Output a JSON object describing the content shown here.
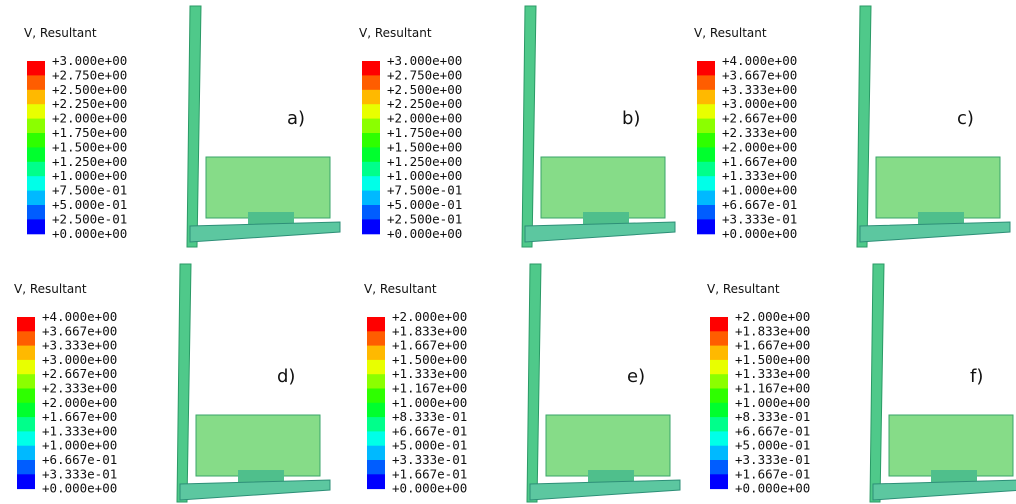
{
  "panels": [
    {
      "title": "V, Resultant",
      "label": "a)",
      "legend": [
        "+3.000e+00",
        "+2.750e+00",
        "+2.500e+00",
        "+2.250e+00",
        "+2.000e+00",
        "+1.750e+00",
        "+1.500e+00",
        "+1.250e+00",
        "+1.000e+00",
        "+7.500e-01",
        "+5.000e-01",
        "+2.500e-01",
        "+0.000e+00"
      ]
    },
    {
      "title": "V, Resultant",
      "label": "b)",
      "legend": [
        "+3.000e+00",
        "+2.750e+00",
        "+2.500e+00",
        "+2.250e+00",
        "+2.000e+00",
        "+1.750e+00",
        "+1.500e+00",
        "+1.250e+00",
        "+1.000e+00",
        "+7.500e-01",
        "+5.000e-01",
        "+2.500e-01",
        "+0.000e+00"
      ]
    },
    {
      "title": "V, Resultant",
      "label": "c)",
      "legend": [
        "+4.000e+00",
        "+3.667e+00",
        "+3.333e+00",
        "+3.000e+00",
        "+2.667e+00",
        "+2.333e+00",
        "+2.000e+00",
        "+1.667e+00",
        "+1.333e+00",
        "+1.000e+00",
        "+6.667e-01",
        "+3.333e-01",
        "+0.000e+00"
      ]
    },
    {
      "title": "V, Resultant",
      "label": "d)",
      "legend": [
        "+4.000e+00",
        "+3.667e+00",
        "+3.333e+00",
        "+3.000e+00",
        "+2.667e+00",
        "+2.333e+00",
        "+2.000e+00",
        "+1.667e+00",
        "+1.333e+00",
        "+1.000e+00",
        "+6.667e-01",
        "+3.333e-01",
        "+0.000e+00"
      ]
    },
    {
      "title": "V, Resultant",
      "label": "e)",
      "legend": [
        "+2.000e+00",
        "+1.833e+00",
        "+1.667e+00",
        "+1.500e+00",
        "+1.333e+00",
        "+1.167e+00",
        "+1.000e+00",
        "+8.333e-01",
        "+6.667e-01",
        "+5.000e-01",
        "+3.333e-01",
        "+1.667e-01",
        "+0.000e+00"
      ]
    },
    {
      "title": "V, Resultant",
      "label": "f)",
      "legend": [
        "+2.000e+00",
        "+1.833e+00",
        "+1.667e+00",
        "+1.500e+00",
        "+1.333e+00",
        "+1.167e+00",
        "+1.000e+00",
        "+8.333e-01",
        "+6.667e-01",
        "+5.000e-01",
        "+3.333e-01",
        "+1.667e-01",
        "+0.000e+00"
      ]
    }
  ]
}
